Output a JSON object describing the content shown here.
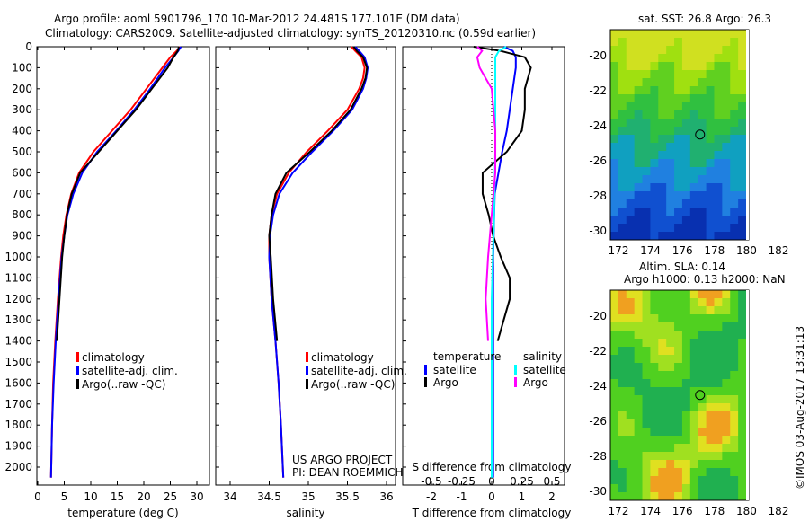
{
  "title": {
    "line1": "Argo profile: aoml 5901796_170 10-Mar-2012 24.481S 177.101E (DM data)",
    "line2": "Climatology: CARS2009. Satellite-adjusted climatology: synTS_20120310.nc (0.59d earlier)"
  },
  "credit": "©IMOS 03-Aug-2017 13:31:13",
  "project": {
    "line1": "US ARGO PROJECT",
    "line2": "PI: DEAN ROEMMICH"
  },
  "colors": {
    "clim": "#ff0000",
    "sat": "#0000ff",
    "argo": "#000000",
    "s_sat": "#00ffff",
    "s_argo": "#ff00ff"
  },
  "chart_data": [
    {
      "type": "line",
      "xlabel": "temperature (deg C)",
      "ylim": [
        2060,
        0
      ],
      "xlim": [
        -0.5,
        31
      ],
      "xticks": [
        "0",
        "5",
        "10",
        "15",
        "20",
        "25",
        "30"
      ],
      "yticks": [
        "0",
        "100",
        "200",
        "300",
        "400",
        "500",
        "600",
        "700",
        "800",
        "900",
        "1000",
        "1100",
        "1200",
        "1300",
        "1400",
        "1500",
        "1600",
        "1700",
        "1800",
        "1900",
        "2000"
      ],
      "legend": [
        "climatology",
        "satellite-adj. clim.",
        "Argo(..raw -QC)"
      ],
      "series": [
        {
          "name": "climatology",
          "depth": [
            0,
            20,
            50,
            100,
            200,
            300,
            400,
            500,
            600,
            700,
            800,
            900,
            1000,
            1200,
            1400,
            1600,
            1800,
            2050
          ],
          "values": [
            26.8,
            26.2,
            25,
            23.5,
            20.5,
            17.5,
            14,
            10.5,
            7.8,
            6.3,
            5.4,
            4.8,
            4.4,
            3.8,
            3.3,
            2.9,
            2.7,
            2.5
          ]
        },
        {
          "name": "satellite-adj. clim.",
          "depth": [
            0,
            20,
            50,
            100,
            200,
            300,
            400,
            500,
            600,
            700,
            800,
            900,
            1000,
            1200,
            1400,
            1600,
            1800,
            2050
          ],
          "values": [
            27,
            26.5,
            25.6,
            24,
            21.2,
            18.2,
            14.8,
            11.2,
            8.4,
            6.7,
            5.6,
            5,
            4.5,
            3.9,
            3.4,
            3,
            2.7,
            2.5
          ]
        },
        {
          "name": "Argo",
          "depth": [
            0,
            20,
            50,
            100,
            200,
            300,
            400,
            500,
            600,
            700,
            800,
            900,
            1000,
            1200,
            1400
          ],
          "values": [
            26.6,
            26.4,
            25.6,
            24.5,
            21.5,
            18.5,
            15,
            11.5,
            8,
            6.4,
            5.5,
            5,
            4.6,
            4.1,
            3.6
          ]
        }
      ]
    },
    {
      "type": "line",
      "xlabel": "salinity",
      "ylim": [
        2060,
        0
      ],
      "xlim": [
        33.8,
        36.1
      ],
      "xticks": [
        "34",
        "34.5",
        "35",
        "35.5",
        "36"
      ],
      "legend": [
        "climatology",
        "satellite-adj. clim.",
        "Argo(..raw -QC)"
      ],
      "series": [
        {
          "name": "climatology",
          "depth": [
            0,
            20,
            50,
            100,
            150,
            200,
            300,
            400,
            500,
            600,
            700,
            800,
            900,
            1000,
            1200,
            1400,
            1600,
            1800,
            2050
          ],
          "values": [
            35.55,
            35.6,
            35.68,
            35.72,
            35.7,
            35.65,
            35.5,
            35.25,
            34.98,
            34.75,
            34.6,
            34.53,
            34.5,
            34.5,
            34.53,
            34.58,
            34.62,
            34.65,
            34.68
          ]
        },
        {
          "name": "satellite-adj. clim.",
          "depth": [
            0,
            20,
            50,
            100,
            150,
            200,
            300,
            400,
            500,
            600,
            700,
            800,
            900,
            1000,
            1200,
            1400,
            1600,
            1800,
            2050
          ],
          "values": [
            35.6,
            35.65,
            35.72,
            35.76,
            35.74,
            35.7,
            35.56,
            35.32,
            35.05,
            34.8,
            34.63,
            34.55,
            34.51,
            34.5,
            34.53,
            34.58,
            34.62,
            34.65,
            34.68
          ]
        },
        {
          "name": "Argo",
          "depth": [
            0,
            20,
            50,
            100,
            150,
            200,
            300,
            400,
            500,
            600,
            700,
            800,
            900,
            1000,
            1200,
            1400
          ],
          "values": [
            35.58,
            35.62,
            35.7,
            35.75,
            35.73,
            35.68,
            35.54,
            35.3,
            35.02,
            34.72,
            34.58,
            34.53,
            34.5,
            34.52,
            34.55,
            34.6
          ]
        }
      ]
    },
    {
      "type": "line",
      "xlabel": "T difference from climatology",
      "x2label": "S difference from climatology",
      "ylim": [
        2060,
        0
      ],
      "xlim": [
        -3,
        2.8
      ],
      "xticks": [
        "-2",
        "-1",
        "0",
        "1",
        "2"
      ],
      "x2ticks": [
        "-0.5",
        "-0.25",
        "0",
        "0.25",
        "0.5"
      ],
      "legend": {
        "temperature": "temperature",
        "salinity": "salinity",
        "t_sat": "satellite",
        "t_argo": "Argo",
        "s_sat": "satellite",
        "s_argo": "Argo"
      },
      "series": [
        {
          "name": "T satellite",
          "depth": [
            0,
            20,
            50,
            100,
            200,
            300,
            400,
            500,
            700,
            1000,
            1500,
            2050
          ],
          "values": [
            0.4,
            0.7,
            0.8,
            0.8,
            0.7,
            0.6,
            0.5,
            0.35,
            0.1,
            0.05,
            0.05,
            0.05
          ]
        },
        {
          "name": "T Argo",
          "depth": [
            0,
            20,
            50,
            100,
            200,
            300,
            400,
            500,
            600,
            700,
            800,
            900,
            1000,
            1100,
            1200,
            1300,
            1400
          ],
          "values": [
            -0.6,
            0.3,
            1.1,
            1.3,
            1.1,
            1.1,
            1,
            0.5,
            -0.3,
            -0.3,
            -0.1,
            0.05,
            0.3,
            0.6,
            0.6,
            0.4,
            0.2
          ]
        },
        {
          "name": "S satellite",
          "depth": [
            0,
            20,
            50,
            200,
            500,
            800,
            1200,
            1600,
            2050
          ],
          "values": [
            0.12,
            0.06,
            0.03,
            0.03,
            0.03,
            0.02,
            0.0,
            0.0,
            0.0
          ]
        },
        {
          "name": "S Argo",
          "depth": [
            0,
            20,
            50,
            100,
            200,
            400,
            600,
            800,
            1000,
            1200,
            1400
          ],
          "values": [
            -0.12,
            -0.08,
            -0.12,
            -0.1,
            0,
            0.03,
            0.03,
            0,
            -0.03,
            -0.05,
            -0.03
          ]
        }
      ]
    },
    {
      "type": "heatmap",
      "title": "sat. SST: 26.8 Argo: 26.3",
      "xticks": [
        "172",
        "174",
        "176",
        "178",
        "180",
        "182"
      ],
      "yticks": [
        "-20",
        "-22",
        "-24",
        "-26",
        "-28",
        "-30"
      ],
      "marker": [
        177.1,
        -24.5
      ]
    },
    {
      "type": "heatmap",
      "title": "Altim. SLA: 0.14",
      "subtitle": "Argo h1000: 0.13 h2000: NaN",
      "xticks": [
        "172",
        "174",
        "176",
        "178",
        "180",
        "182"
      ],
      "yticks": [
        "-20",
        "-22",
        "-24",
        "-26",
        "-28",
        "-30"
      ],
      "marker": [
        177.1,
        -24.5
      ]
    }
  ]
}
